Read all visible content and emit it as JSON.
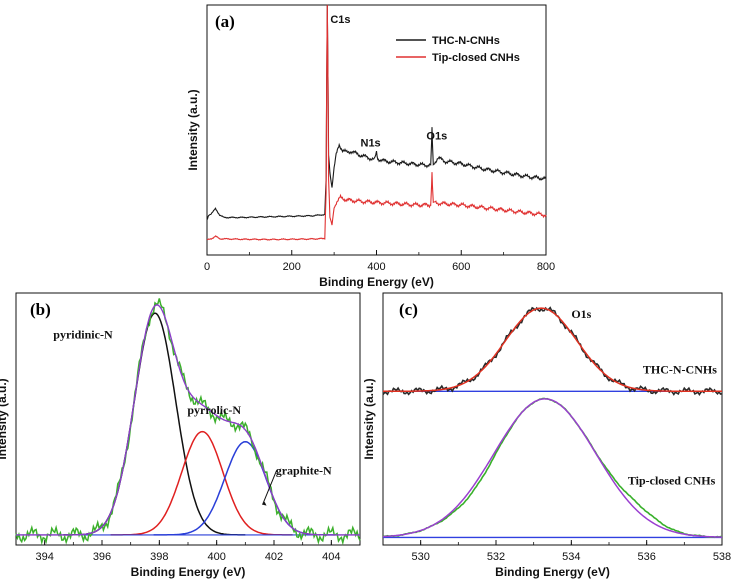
{
  "chart_data": [
    {
      "panel": "(a)",
      "type": "line",
      "xlabel": "Binding Energy (eV)",
      "ylabel": "Intensity (a.u.)",
      "xlim": [
        0,
        800
      ],
      "ylim": [
        0,
        100
      ],
      "xticks": [
        "0",
        "200",
        "400",
        "600",
        "800"
      ],
      "legend_position": "top-right",
      "annotations": [
        {
          "text": "C1s",
          "x": 284,
          "y": 98
        },
        {
          "text": "N1s",
          "x": 400,
          "y": 45
        },
        {
          "text": "O1s",
          "x": 532,
          "y": 47
        }
      ],
      "series": [
        {
          "name": "THC-N-CNHs",
          "color": "#1a1a1a",
          "points": [
            [
              0,
              14
            ],
            [
              4,
              16
            ],
            [
              10,
              16.5
            ],
            [
              20,
              18.5
            ],
            [
              30,
              16
            ],
            [
              40,
              15
            ],
            [
              80,
              15
            ],
            [
              150,
              15.3
            ],
            [
              200,
              15.5
            ],
            [
              250,
              15.7
            ],
            [
              278,
              16.2
            ],
            [
              281,
              30
            ],
            [
              282.5,
              70
            ],
            [
              284,
              100
            ],
            [
              285.5,
              70
            ],
            [
              287,
              40
            ],
            [
              290,
              33
            ],
            [
              295,
              27
            ],
            [
              300,
              35
            ],
            [
              305,
              40
            ],
            [
              312,
              44
            ],
            [
              320,
              42
            ],
            [
              330,
              41
            ],
            [
              340,
              41.5
            ],
            [
              360,
              40
            ],
            [
              380,
              39
            ],
            [
              395,
              38
            ],
            [
              400,
              41
            ],
            [
              403,
              38.5
            ],
            [
              420,
              37.5
            ],
            [
              450,
              37
            ],
            [
              480,
              36.5
            ],
            [
              510,
              36
            ],
            [
              528,
              36
            ],
            [
              530,
              45
            ],
            [
              531,
              51
            ],
            [
              532,
              45
            ],
            [
              534,
              36
            ],
            [
              545,
              39
            ],
            [
              555,
              38
            ],
            [
              560,
              37.5
            ],
            [
              600,
              36.5
            ],
            [
              650,
              34.5
            ],
            [
              700,
              33
            ],
            [
              750,
              31.5
            ],
            [
              800,
              30.5
            ]
          ]
        },
        {
          "name": "Tip-closed CNHs",
          "color": "#e03030",
          "points": [
            [
              0,
              6
            ],
            [
              10,
              6.5
            ],
            [
              20,
              7.5
            ],
            [
              30,
              6.5
            ],
            [
              80,
              6.3
            ],
            [
              150,
              6.2
            ],
            [
              200,
              6.3
            ],
            [
              250,
              6.4
            ],
            [
              278,
              6.6
            ],
            [
              281,
              25
            ],
            [
              282.5,
              70
            ],
            [
              284,
              100
            ],
            [
              285.5,
              70
            ],
            [
              287,
              30
            ],
            [
              290,
              15
            ],
            [
              295,
              12
            ],
            [
              300,
              19
            ],
            [
              305,
              21
            ],
            [
              315,
              23
            ],
            [
              330,
              22
            ],
            [
              360,
              21.5
            ],
            [
              400,
              21
            ],
            [
              450,
              20.5
            ],
            [
              500,
              20
            ],
            [
              528,
              20
            ],
            [
              530,
              28
            ],
            [
              531,
              33
            ],
            [
              532,
              28
            ],
            [
              534,
              21
            ],
            [
              560,
              20.5
            ],
            [
              600,
              20
            ],
            [
              650,
              19
            ],
            [
              700,
              18
            ],
            [
              750,
              17
            ],
            [
              800,
              16
            ]
          ]
        }
      ]
    },
    {
      "panel": "(b)",
      "type": "line",
      "xlabel": "Binding Energy (eV)",
      "ylabel": "Intensity (a.u.)",
      "xlim": [
        393,
        405
      ],
      "ylim": [
        0,
        100
      ],
      "xticks": [
        "394",
        "396",
        "398",
        "400",
        "402",
        "404"
      ],
      "annotations": [
        {
          "text": "pyridinic-N",
          "x": 394.3,
          "y": 82
        },
        {
          "text": "pyrrolic-N",
          "x": 399.5,
          "y": 52
        },
        {
          "text": "graphite-N",
          "x": 402.2,
          "y": 28
        }
      ],
      "peaks": [
        {
          "name": "pyridinic-N",
          "center": 397.85,
          "height": 88,
          "width": 0.72,
          "color": "#111111"
        },
        {
          "name": "pyrrolic-N",
          "center": 399.5,
          "height": 41,
          "width": 0.72,
          "color": "#e02020"
        },
        {
          "name": "graphite-N",
          "center": 401.0,
          "height": 37,
          "width": 0.72,
          "color": "#2a3fd8"
        }
      ],
      "baseline": 4,
      "fit_color": "#8a3fc7",
      "data_color": "#3cb02c"
    },
    {
      "panel": "(c)",
      "type": "line",
      "xlabel": "Binding Energy (eV)",
      "ylabel": "Intensity (a.u.)",
      "xlim": [
        529,
        538
      ],
      "ylim": [
        0,
        100
      ],
      "xticks": [
        "530",
        "532",
        "534",
        "536",
        "538"
      ],
      "annotations": [
        {
          "text": "O1s",
          "x": 534.0,
          "y": 90
        },
        {
          "text": "THC-N-CNHs",
          "x": 535.9,
          "y": 68
        },
        {
          "text": "Tip-closed CNHs",
          "x": 535.5,
          "y": 24
        }
      ],
      "upper": {
        "baseline": 61,
        "center": 533.2,
        "height": 33,
        "width": 0.95,
        "data_color": "#2a2a2a",
        "fit_color": "#e03020",
        "baseline_color": "#3040e0"
      },
      "lower": {
        "baseline": 3,
        "center": 533.3,
        "height": 55,
        "width": 1.35,
        "data_color": "#38b02a",
        "fit_color": "#9a3fd0",
        "baseline_color": "#3040e0"
      }
    }
  ]
}
